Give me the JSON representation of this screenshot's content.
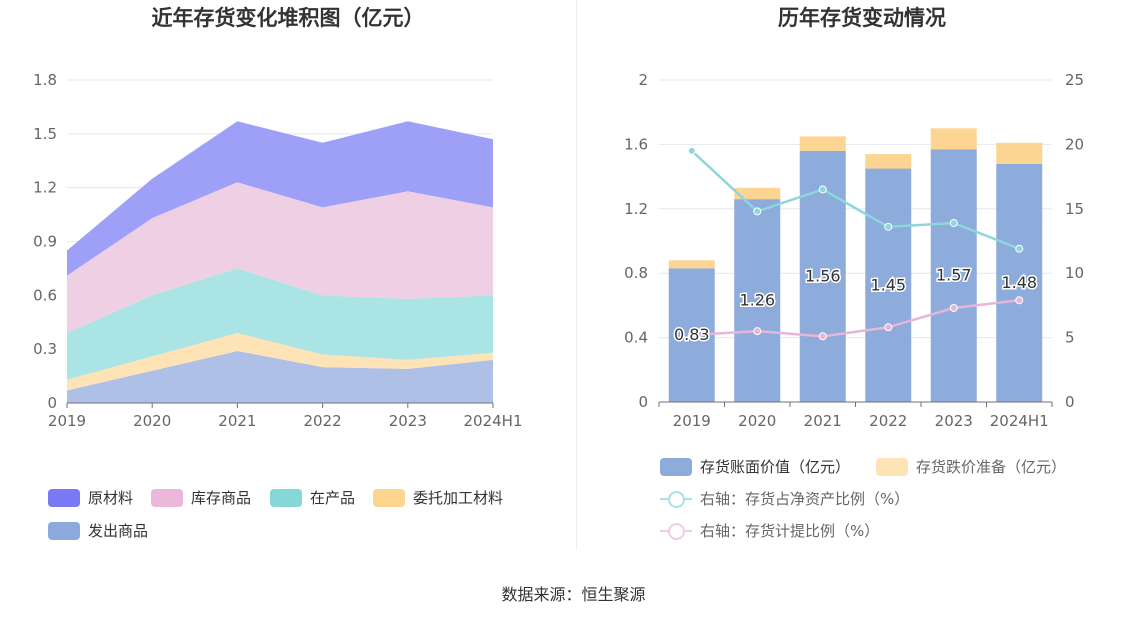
{
  "left": {
    "title": "近年存货变化堆积图（亿元）",
    "legend": [
      {
        "name": "原材料",
        "color": "#7b78f4"
      },
      {
        "name": "库存商品",
        "color": "#ecb8da"
      },
      {
        "name": "在产品",
        "color": "#86d7d7"
      },
      {
        "name": "委托加工材料",
        "color": "#fcd68f"
      },
      {
        "name": "发出商品",
        "color": "#8ea9db"
      }
    ]
  },
  "right": {
    "title": "历年存货变动情况",
    "legend": {
      "bar1": "存货账面价值（亿元）",
      "bar2": "存货跌价准备（亿元）",
      "line1": "右轴：存货占净资产比例（%）",
      "line2": "右轴：存货计提比例（%）"
    }
  },
  "source": "数据来源：恒生聚源",
  "chart_data": [
    {
      "type": "area",
      "title": "近年存货变化堆积图（亿元）",
      "stacked": true,
      "categories": [
        "2019",
        "2020",
        "2021",
        "2022",
        "2023",
        "2024H1"
      ],
      "ylim": [
        0,
        1.8
      ],
      "yticks": [
        "0",
        "0.3",
        "0.6",
        "0.9",
        "1.2",
        "1.5",
        "1.8"
      ],
      "series": [
        {
          "name": "发出商品",
          "color": "#aec0e6",
          "values": [
            0.07,
            0.18,
            0.29,
            0.2,
            0.19,
            0.24
          ]
        },
        {
          "name": "委托加工材料",
          "color": "#fde3b6",
          "values": [
            0.06,
            0.08,
            0.1,
            0.07,
            0.05,
            0.04
          ]
        },
        {
          "name": "在产品",
          "color": "#abe4e4",
          "values": [
            0.26,
            0.34,
            0.36,
            0.33,
            0.34,
            0.32
          ]
        },
        {
          "name": "库存商品",
          "color": "#efcfe4",
          "values": [
            0.32,
            0.43,
            0.48,
            0.49,
            0.6,
            0.49
          ]
        },
        {
          "name": "原材料",
          "color": "#9e9ff7",
          "values": [
            0.14,
            0.22,
            0.34,
            0.36,
            0.39,
            0.38
          ]
        }
      ],
      "grid": true,
      "legend_position": "bottom"
    },
    {
      "type": "bar",
      "title": "历年存货变动情况",
      "stacked": true,
      "categories": [
        "2019",
        "2020",
        "2021",
        "2022",
        "2023",
        "2024H1"
      ],
      "ylim": [
        0,
        2
      ],
      "yticks": [
        "0",
        "0.4",
        "0.8",
        "1.2",
        "1.6",
        "2"
      ],
      "y2lim": [
        0,
        25
      ],
      "y2ticks": [
        "0",
        "5",
        "10",
        "15",
        "20",
        "25"
      ],
      "series": [
        {
          "name": "存货账面价值（亿元）",
          "type": "bar",
          "color": "#8dabdb",
          "values": [
            0.83,
            1.26,
            1.56,
            1.45,
            1.57,
            1.48
          ],
          "labels": [
            "0.83",
            "1.26",
            "1.56",
            "1.45",
            "1.57",
            "1.48"
          ]
        },
        {
          "name": "存货跌价准备（亿元）",
          "type": "bar",
          "color": "#fdd593",
          "values": [
            0.05,
            0.07,
            0.09,
            0.09,
            0.13,
            0.13
          ]
        },
        {
          "name": "右轴：存货占净资产比例（%）",
          "type": "line",
          "axis": "right",
          "color": "#8dd6dc",
          "values": [
            19.5,
            14.8,
            16.5,
            13.6,
            13.9,
            11.9
          ]
        },
        {
          "name": "右轴：存货计提比例（%）",
          "type": "line",
          "axis": "right",
          "color": "#e6b6d8",
          "values": [
            5.2,
            5.5,
            5.1,
            5.8,
            7.3,
            7.9
          ]
        }
      ],
      "grid": true,
      "legend_position": "bottom"
    }
  ]
}
